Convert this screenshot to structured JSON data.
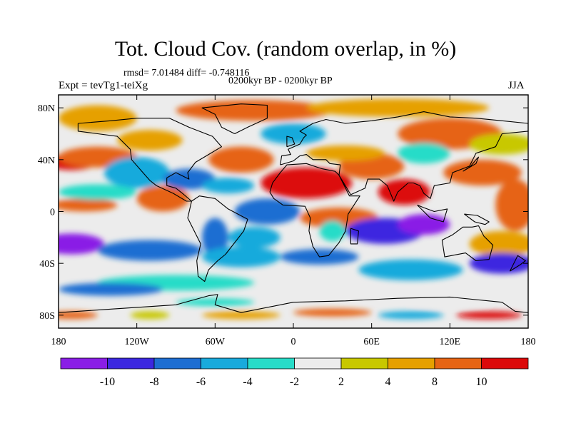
{
  "title": "Tot. Cloud Cov. (random overlap, in %)",
  "stats": "rmsd= 7.01484 diff= -0.748116",
  "subtitle": "0200kyr BP - 0200kyr BP",
  "expt": "Expt = tevTg1-teiXg",
  "season": "JJA",
  "axes": {
    "lat_labels": [
      "80N",
      "40N",
      "0",
      "40S",
      "80S"
    ],
    "lat_values": [
      80,
      40,
      0,
      -40,
      -80
    ],
    "lon_labels": [
      "180",
      "120W",
      "60W",
      "0",
      "60E",
      "120E",
      "180"
    ],
    "lon_values": [
      -180,
      -120,
      -60,
      0,
      60,
      120,
      180
    ],
    "lat_range": [
      -90,
      90
    ],
    "lon_range": [
      -180,
      180
    ]
  },
  "colorbar": {
    "labels": [
      "-10",
      "-8",
      "-6",
      "-4",
      "-2",
      "2",
      "4",
      "8",
      "10"
    ],
    "colors": [
      "#8a1ee6",
      "#3c28e0",
      "#1e6ed2",
      "#19aadc",
      "#28dcc8",
      "#ececec",
      "#c8c800",
      "#e6a000",
      "#e66414",
      "#dc0a0a"
    ]
  },
  "map_colors": {
    "background": "#ececec",
    "coastline": "#000000"
  }
}
